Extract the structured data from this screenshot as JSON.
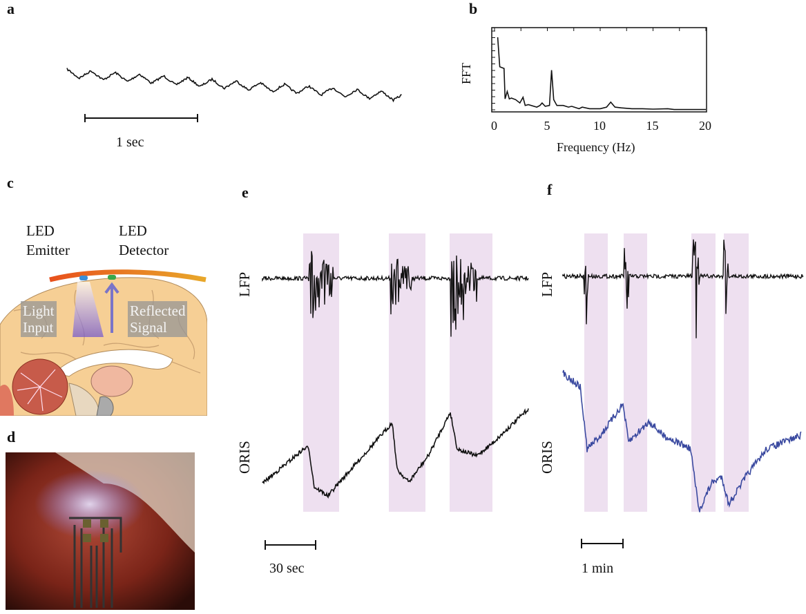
{
  "panels": {
    "a": {
      "label": "a",
      "scale_label": "1 sec"
    },
    "b": {
      "label": "b"
    },
    "c": {
      "label": "c",
      "emitter_line1": "LED",
      "emitter_line2": "Emitter",
      "detector_line1": "LED",
      "detector_line2": "Detector",
      "light_line1": "Light",
      "light_line2": "Input",
      "reflected_line1": "Reflected",
      "reflected_line2": "Signal"
    },
    "d": {
      "label": "d"
    },
    "e": {
      "label": "e",
      "lfp_label": "LFP",
      "oris_label": "ORIS",
      "scale_label": "30 sec"
    },
    "f": {
      "label": "f",
      "lfp_label": "LFP",
      "oris_label": "ORIS",
      "scale_label": "1 min"
    }
  },
  "colors": {
    "trace": "#111111",
    "oris_f": "#3b4aa0",
    "band": "#eee0f0",
    "lfp_band": "#4a3a48"
  },
  "chart_data": {
    "type": "line",
    "title": "",
    "xlabel": "Frequency (Hz)",
    "ylabel": "FFT",
    "xlim": [
      0,
      20
    ],
    "ylim": [
      0,
      1
    ],
    "xticks": [
      "0",
      "5",
      "10",
      "15",
      "20"
    ],
    "xtick_values": [
      0,
      5,
      10,
      15,
      20
    ],
    "grid": false,
    "series": [
      {
        "name": "FFT",
        "x": [
          0.3,
          0.5,
          0.9,
          1.0,
          1.2,
          1.4,
          1.6,
          2.0,
          2.4,
          2.7,
          2.9,
          3.2,
          4.0,
          4.3,
          4.5,
          4.8,
          5.2,
          5.4,
          5.6,
          5.9,
          6.5,
          7.0,
          7.3,
          8.0,
          8.3,
          9.0,
          10.0,
          10.6,
          11.0,
          11.4,
          12.0,
          13.0,
          14.0,
          15.0,
          16.4,
          17.0,
          18.0,
          20.0
        ],
        "y": [
          0.9,
          0.54,
          0.52,
          0.15,
          0.24,
          0.15,
          0.16,
          0.14,
          0.1,
          0.17,
          0.07,
          0.08,
          0.05,
          0.07,
          0.1,
          0.06,
          0.07,
          0.5,
          0.14,
          0.07,
          0.07,
          0.05,
          0.06,
          0.03,
          0.05,
          0.03,
          0.03,
          0.05,
          0.11,
          0.05,
          0.04,
          0.03,
          0.03,
          0.025,
          0.03,
          0.02,
          0.02,
          0.02
        ]
      }
    ]
  }
}
